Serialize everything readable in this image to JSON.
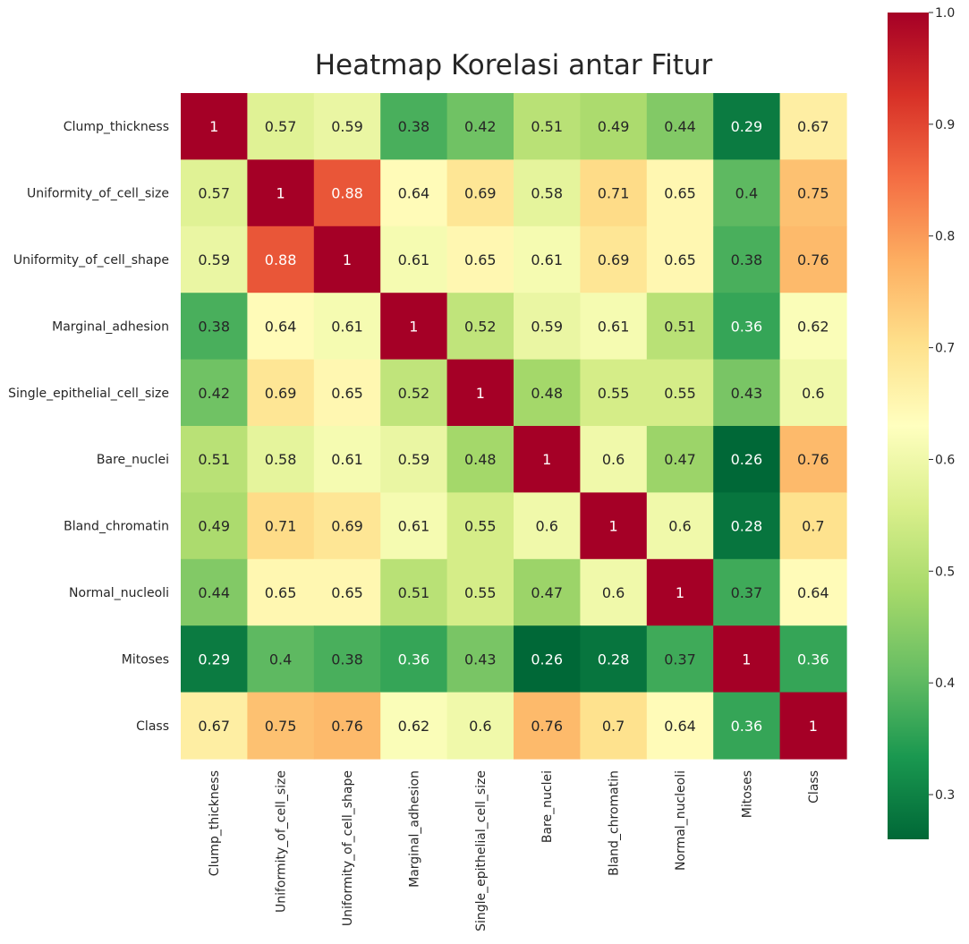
{
  "chart_data": {
    "type": "heatmap",
    "title": "Heatmap Korelasi antar Fitur",
    "xlabel": "",
    "ylabel": "",
    "rows": [
      "Clump_thickness",
      "Uniformity_of_cell_size",
      "Uniformity_of_cell_shape",
      "Marginal_adhesion",
      "Single_epithelial_cell_size",
      "Bare_nuclei",
      "Bland_chromatin",
      "Normal_nucleoli",
      "Mitoses",
      "Class"
    ],
    "columns": [
      "Clump_thickness",
      "Uniformity_of_cell_size",
      "Uniformity_of_cell_shape",
      "Marginal_adhesion",
      "Single_epithelial_cell_size",
      "Bare_nuclei",
      "Bland_chromatin",
      "Normal_nucleoli",
      "Mitoses",
      "Class"
    ],
    "values": [
      [
        1,
        0.57,
        0.59,
        0.38,
        0.42,
        0.51,
        0.49,
        0.44,
        0.29,
        0.67
      ],
      [
        0.57,
        1,
        0.88,
        0.64,
        0.69,
        0.58,
        0.71,
        0.65,
        0.4,
        0.75
      ],
      [
        0.59,
        0.88,
        1,
        0.61,
        0.65,
        0.61,
        0.69,
        0.65,
        0.38,
        0.76
      ],
      [
        0.38,
        0.64,
        0.61,
        1,
        0.52,
        0.59,
        0.61,
        0.51,
        0.36,
        0.62
      ],
      [
        0.42,
        0.69,
        0.65,
        0.52,
        1,
        0.48,
        0.55,
        0.55,
        0.43,
        0.6
      ],
      [
        0.51,
        0.58,
        0.61,
        0.59,
        0.48,
        1,
        0.6,
        0.47,
        0.26,
        0.76
      ],
      [
        0.49,
        0.71,
        0.69,
        0.61,
        0.55,
        0.6,
        1,
        0.6,
        0.28,
        0.7
      ],
      [
        0.44,
        0.65,
        0.65,
        0.51,
        0.55,
        0.47,
        0.6,
        1,
        0.37,
        0.64
      ],
      [
        0.29,
        0.4,
        0.38,
        0.36,
        0.43,
        0.26,
        0.28,
        0.37,
        1,
        0.36
      ],
      [
        0.67,
        0.75,
        0.76,
        0.62,
        0.6,
        0.76,
        0.7,
        0.64,
        0.36,
        1
      ]
    ],
    "annotate": true,
    "colormap": "RdYlGn_r",
    "colormap_stops": [
      "#006837",
      "#1a9850",
      "#66bd63",
      "#a6d96a",
      "#d9ef8b",
      "#ffffbf",
      "#fee08b",
      "#fdae61",
      "#f46d43",
      "#d73027",
      "#a50026"
    ],
    "value_range": [
      0.26,
      1.0
    ],
    "colorbar": {
      "ticks": [
        0.3,
        0.4,
        0.5,
        0.6,
        0.7,
        0.8,
        0.9,
        1.0
      ],
      "tick_labels": [
        "0.3",
        "0.4",
        "0.5",
        "0.6",
        "0.7",
        "0.8",
        "0.9",
        "1.0"
      ],
      "placement": "right"
    },
    "grid": false,
    "legend": "none"
  }
}
